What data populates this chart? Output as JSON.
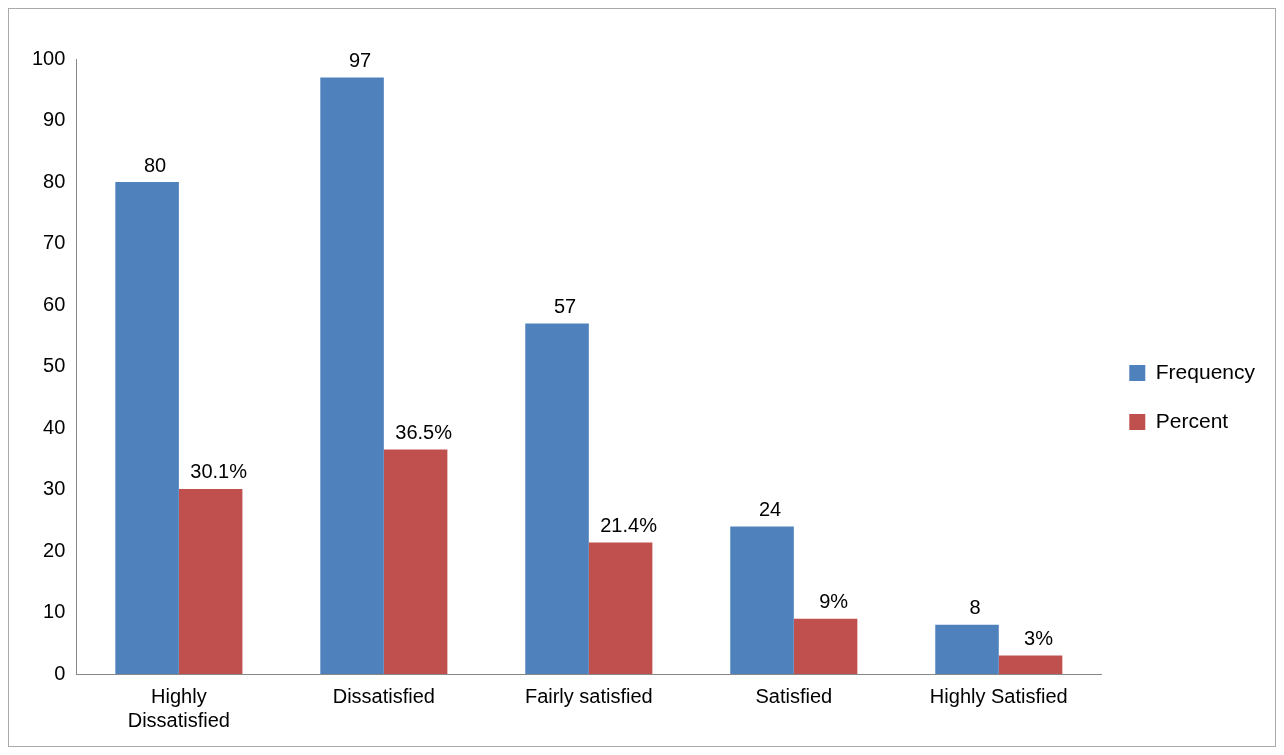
{
  "chart_data": {
    "type": "bar",
    "categories": [
      "Highly Dissatisfied",
      "Dissatisfied",
      "Fairly satisfied",
      "Satisfied",
      "Highly Satisfied"
    ],
    "series": [
      {
        "name": "Frequency",
        "color": "#4f81bd",
        "values": [
          80,
          97,
          57,
          24,
          8
        ],
        "value_labels": [
          "80",
          "97",
          "57",
          "24",
          "8"
        ]
      },
      {
        "name": "Percent",
        "color": "#c0504d",
        "values": [
          30.1,
          36.5,
          21.4,
          9,
          3
        ],
        "value_labels": [
          "30.1%",
          "36.5%",
          "21.4%",
          "9%",
          "3%"
        ]
      }
    ],
    "ylim": [
      0,
      100
    ],
    "yticks": [
      0,
      10,
      20,
      30,
      40,
      50,
      60,
      70,
      80,
      90,
      100
    ],
    "legend": "right"
  }
}
